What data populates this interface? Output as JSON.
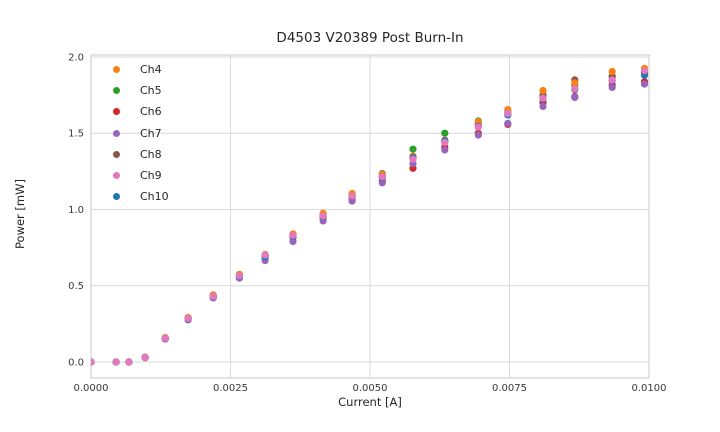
{
  "chart_data": {
    "type": "scatter",
    "title": "D4503 V20389 Post Burn-In",
    "xlabel": "Current [A]",
    "ylabel": "Power [mW]",
    "xlim": [
      0.0,
      0.01
    ],
    "ylim": [
      -0.105,
      2.013
    ],
    "grid": true,
    "legend_position": "upper left",
    "marker": "circle",
    "x_ticks": {
      "values": [
        0.0,
        0.0025,
        0.005,
        0.0075,
        0.01
      ],
      "labels": [
        "0.0000",
        "0.0025",
        "0.0050",
        "0.0075",
        "0.0100"
      ]
    },
    "y_ticks": {
      "values": [
        0.0,
        0.5,
        1.0,
        1.5,
        2.0
      ],
      "labels": [
        "0.0",
        "0.5",
        "1.0",
        "1.5",
        "2.0"
      ]
    },
    "x": [
      0.0,
      0.00045,
      0.00068,
      0.00097,
      0.00133,
      0.00174,
      0.00219,
      0.00266,
      0.00312,
      0.00362,
      0.00416,
      0.00468,
      0.00522,
      0.00577,
      0.00634,
      0.00694,
      0.00747,
      0.0081,
      0.00867,
      0.00934,
      0.00992
    ],
    "series": [
      {
        "name": "Ch4",
        "color": "#ff7f0e",
        "values": [
          0.0,
          0.0,
          0.0,
          0.032,
          0.16,
          0.292,
          0.44,
          0.575,
          0.705,
          0.84,
          0.975,
          1.105,
          1.23,
          1.35,
          1.455,
          1.575,
          1.655,
          1.78,
          1.83,
          1.905,
          1.925
        ]
      },
      {
        "name": "Ch5",
        "color": "#2ca02c",
        "values": [
          0.0,
          0.0,
          0.0,
          0.031,
          0.158,
          0.29,
          0.437,
          0.572,
          0.7,
          0.836,
          0.97,
          1.1,
          1.235,
          1.395,
          1.5,
          1.58,
          1.64,
          1.75,
          1.815,
          1.875,
          1.895
        ]
      },
      {
        "name": "Ch6",
        "color": "#d62728",
        "values": [
          0.0,
          0.0,
          0.0,
          0.029,
          0.152,
          0.28,
          0.425,
          0.555,
          0.682,
          0.816,
          0.945,
          1.075,
          1.185,
          1.27,
          1.41,
          1.5,
          1.558,
          1.7,
          1.74,
          1.815,
          1.838
        ]
      },
      {
        "name": "Ch7",
        "color": "#9467bd",
        "values": [
          0.0,
          0.0,
          0.0,
          0.028,
          0.15,
          0.276,
          0.42,
          0.55,
          0.665,
          0.79,
          0.925,
          1.055,
          1.175,
          1.3,
          1.39,
          1.488,
          1.565,
          1.675,
          1.735,
          1.8,
          1.822
        ]
      },
      {
        "name": "Ch8",
        "color": "#8c564b",
        "values": [
          0.0,
          0.0,
          0.0,
          0.03,
          0.156,
          0.286,
          0.432,
          0.567,
          0.695,
          0.83,
          0.96,
          1.09,
          1.22,
          1.345,
          1.445,
          1.555,
          1.625,
          1.745,
          1.85,
          1.87,
          1.9
        ]
      },
      {
        "name": "Ch9",
        "color": "#e377c2",
        "values": [
          0.0,
          0.0,
          0.0,
          0.03,
          0.155,
          0.285,
          0.43,
          0.565,
          0.7,
          0.83,
          0.958,
          1.088,
          1.215,
          1.33,
          1.44,
          1.54,
          1.63,
          1.73,
          1.79,
          1.85,
          1.91
        ]
      },
      {
        "name": "Ch10",
        "color": "#1f77b4",
        "values": [
          0.0,
          0.0,
          0.0,
          0.03,
          0.154,
          0.283,
          0.428,
          0.562,
          0.69,
          0.824,
          0.955,
          1.085,
          1.21,
          1.34,
          1.452,
          1.545,
          1.62,
          1.725,
          1.785,
          1.845,
          1.88
        ]
      }
    ],
    "draw_order": [
      "Ch6",
      "Ch7",
      "Ch5",
      "Ch8",
      "Ch4",
      "Ch10",
      "Ch9"
    ]
  }
}
